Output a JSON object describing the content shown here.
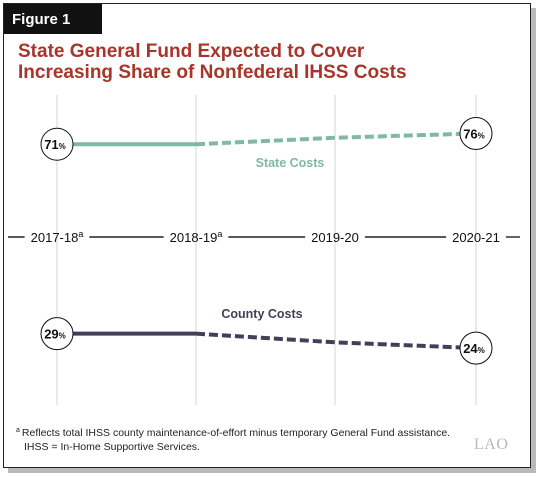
{
  "figure_label": "Figure 1",
  "title_lines": [
    "State General Fund Expected to Cover",
    "Increasing Share of Nonfederal IHSS Costs"
  ],
  "footnotes": {
    "a_marker": "a",
    "a_text": "Reflects total IHSS county maintenance-of-effort minus temporary General Fund assistance.",
    "abbrev": "IHSS = In-Home Supportive Services."
  },
  "logo": "LAO",
  "colors": {
    "state": "#7fb8a8",
    "county": "#41405a",
    "title": "#a8352a",
    "axis": "#222222",
    "grid": "#d4d4d4"
  },
  "chart_data": {
    "type": "line",
    "title": "State General Fund Expected to Cover Increasing Share of Nonfederal IHSS Costs",
    "categories": [
      "2017-18",
      "2018-19",
      "2019-20",
      "2020-21"
    ],
    "category_superscripts": [
      "a",
      "a",
      "",
      ""
    ],
    "series": [
      {
        "name": "State Costs",
        "values": [
          71,
          71,
          74,
          76
        ],
        "projected_from_index": 1,
        "labels": [
          {
            "index": 0,
            "value": "71",
            "unit": "%"
          },
          {
            "index": 3,
            "value": "76",
            "unit": "%"
          }
        ]
      },
      {
        "name": "County Costs",
        "values": [
          29,
          29,
          26,
          24
        ],
        "projected_from_index": 1,
        "labels": [
          {
            "index": 0,
            "value": "29",
            "unit": "%"
          },
          {
            "index": 3,
            "value": "24",
            "unit": "%"
          }
        ]
      }
    ],
    "legend": "inline labels"
  }
}
